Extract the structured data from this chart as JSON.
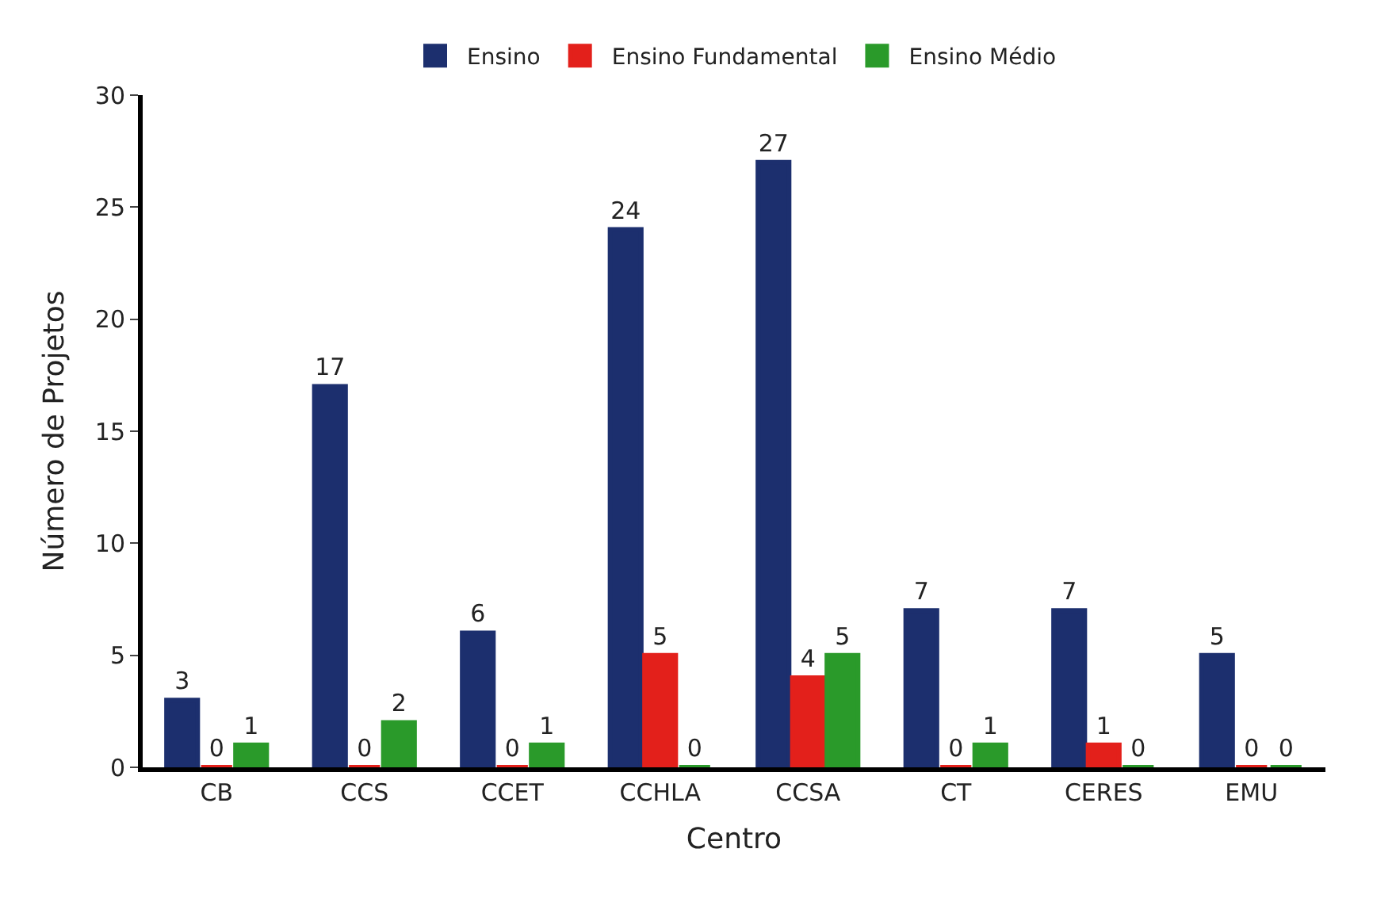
{
  "chart_data": {
    "type": "bar",
    "xlabel": "Centro",
    "ylabel": "Número de Projetos",
    "categories": [
      "CB",
      "CCS",
      "CCET",
      "CCHLA",
      "CCSA",
      "CT",
      "CERES",
      "EMU"
    ],
    "series": [
      {
        "name": "Ensino",
        "color": "#1c2f6e",
        "values": [
          3,
          17,
          6,
          24,
          27,
          7,
          7,
          5
        ]
      },
      {
        "name": "Ensino Fundamental",
        "color": "#e3201b",
        "values": [
          0,
          0,
          0,
          5,
          4,
          0,
          1,
          0
        ]
      },
      {
        "name": "Ensino Médio",
        "color": "#2a9a2a",
        "values": [
          1,
          2,
          1,
          0,
          5,
          1,
          0,
          0
        ]
      }
    ],
    "ylim": [
      0,
      30
    ],
    "yticks": [
      0,
      5,
      10,
      15,
      20,
      25,
      30
    ],
    "legend": "top",
    "data_labels": true
  }
}
